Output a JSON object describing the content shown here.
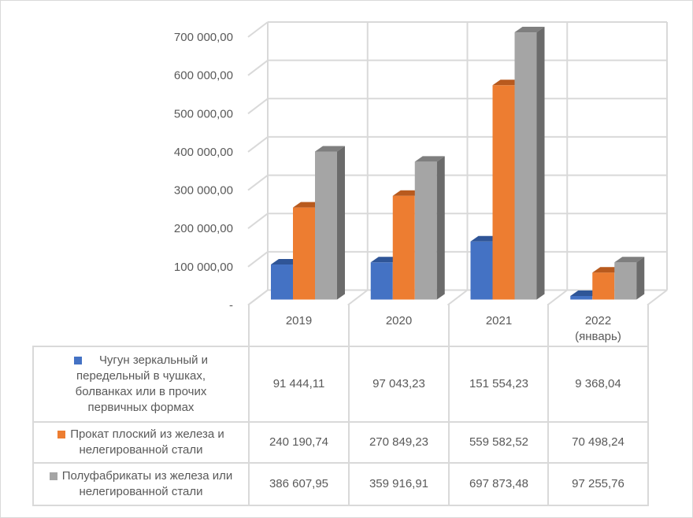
{
  "chart_data": {
    "type": "bar",
    "style": "3d-clustered-column-with-data-table",
    "categories": [
      "2019",
      "2020",
      "2021",
      "2022 (январь)"
    ],
    "category_lines": [
      [
        "2019"
      ],
      [
        "2020"
      ],
      [
        "2021"
      ],
      [
        "2022",
        "(январь)"
      ]
    ],
    "ylim": [
      0,
      700000
    ],
    "yticks": [
      0,
      100000,
      200000,
      300000,
      400000,
      500000,
      600000,
      700000
    ],
    "ytick_labels": [
      "-",
      "100 000,00",
      "200 000,00",
      "300 000,00",
      "400 000,00",
      "500 000,00",
      "600 000,00",
      "700 000,00"
    ],
    "grid": true,
    "legend": "data-table-left",
    "series": [
      {
        "name": "Чугун зеркальный и передельный в чушках, болванках или в прочих первичных формах",
        "name_lines": [
          "Чугун зеркальный и",
          "передельный в чушках,",
          "болванках или в прочих",
          "первичных формах"
        ],
        "color": "#4472C4",
        "top": "#2F5597",
        "side": "#2F5597",
        "values": [
          91444.11,
          97043.23,
          151554.23,
          9368.04
        ],
        "labels": [
          "91 444,11",
          "97 043,23",
          "151 554,23",
          "9 368,04"
        ]
      },
      {
        "name": "Прокат плоский из железа и нелегированной стали",
        "name_lines": [
          "Прокат плоский из железа и",
          "нелегированной стали"
        ],
        "color": "#ED7D31",
        "top": "#B85A1E",
        "side": "#B85A1E",
        "values": [
          240190.74,
          270849.23,
          559582.52,
          70498.24
        ],
        "labels": [
          "240 190,74",
          "270 849,23",
          "559 582,52",
          "70 498,24"
        ]
      },
      {
        "name": "Полуфабрикаты из железа или нелегированной стали",
        "name_lines": [
          "Полуфабрикаты из железа или",
          "нелегированной стали"
        ],
        "color": "#A5A5A5",
        "top": "#7F7F7F",
        "side": "#6B6B6B",
        "values": [
          386607.95,
          359916.91,
          697873.48,
          97255.76
        ],
        "labels": [
          "386 607,95",
          "359 916,91",
          "697 873,48",
          "97 255,76"
        ]
      }
    ]
  }
}
